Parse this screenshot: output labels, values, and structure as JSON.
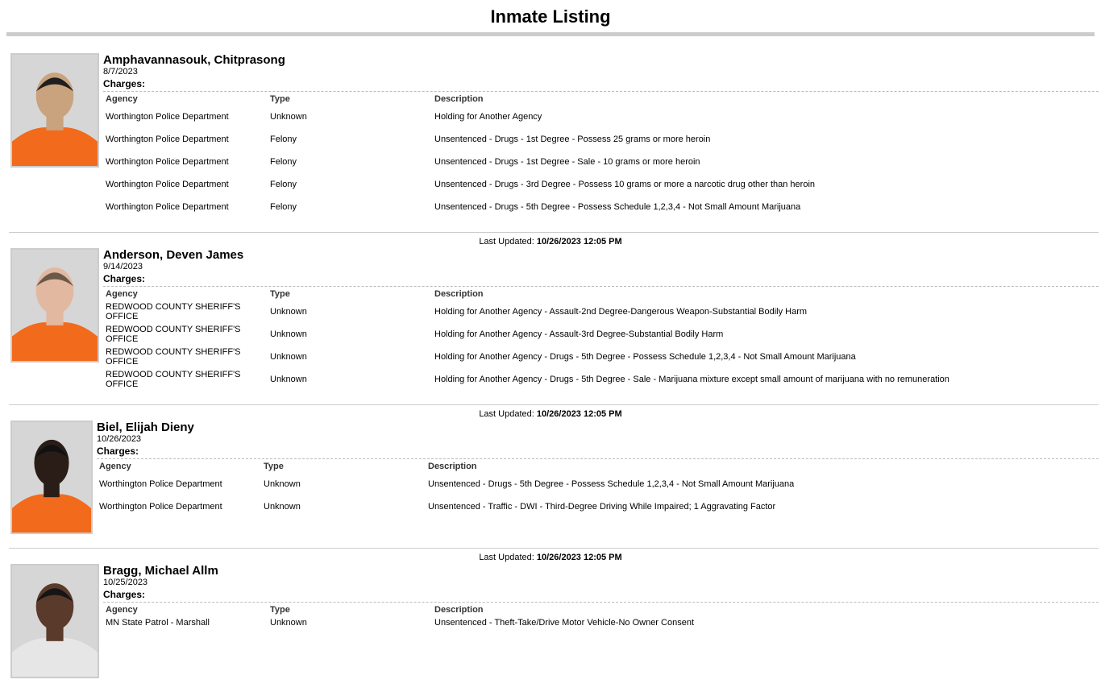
{
  "page": {
    "title": "Inmate Listing"
  },
  "labels": {
    "charges": "Charges:",
    "agency": "Agency",
    "type": "Type",
    "description": "Description",
    "last_updated": "Last Updated:"
  },
  "inmates": [
    {
      "name": "Amphavannasouk, Chitprasong",
      "date": "8/7/2023",
      "last_updated": "10/26/2023 12:05 PM",
      "charges": [
        {
          "agency": "Worthington Police Department",
          "type": "Unknown",
          "description": "Holding for Another Agency"
        },
        {
          "agency": "Worthington Police Department",
          "type": "Felony",
          "description": "Unsentenced - Drugs - 1st Degree - Possess 25 grams or more heroin"
        },
        {
          "agency": "Worthington Police Department",
          "type": "Felony",
          "description": "Unsentenced - Drugs - 1st Degree - Sale - 10 grams or more heroin"
        },
        {
          "agency": "Worthington Police Department",
          "type": "Felony",
          "description": "Unsentenced - Drugs - 3rd Degree - Possess 10 grams or more a narcotic drug other than heroin"
        },
        {
          "agency": "Worthington Police Department",
          "type": "Felony",
          "description": "Unsentenced - Drugs - 5th Degree - Possess Schedule 1,2,3,4 - Not Small Amount Marijuana"
        }
      ]
    },
    {
      "name": "Anderson, Deven James",
      "date": "9/14/2023",
      "last_updated": "10/26/2023 12:05 PM",
      "charges": [
        {
          "agency": "REDWOOD COUNTY SHERIFF'S OFFICE",
          "type": "Unknown",
          "description": "Holding for Another Agency - Assault-2nd Degree-Dangerous Weapon-Substantial Bodily Harm"
        },
        {
          "agency": "REDWOOD COUNTY SHERIFF'S OFFICE",
          "type": "Unknown",
          "description": "Holding for Another Agency - Assault-3rd Degree-Substantial Bodily Harm"
        },
        {
          "agency": "REDWOOD COUNTY SHERIFF'S OFFICE",
          "type": "Unknown",
          "description": "Holding for Another Agency - Drugs - 5th Degree - Possess Schedule 1,2,3,4 - Not Small Amount Marijuana"
        },
        {
          "agency": "REDWOOD COUNTY SHERIFF'S OFFICE",
          "type": "Unknown",
          "description": "Holding for Another Agency - Drugs - 5th Degree - Sale - Marijuana mixture except small amount of marijuana with no remuneration"
        }
      ]
    },
    {
      "name": "Biel, Elijah Dieny",
      "date": "10/26/2023",
      "last_updated": "10/26/2023 12:05 PM",
      "charges": [
        {
          "agency": "Worthington Police Department",
          "type": "Unknown",
          "description": "Unsentenced - Drugs - 5th Degree - Possess Schedule 1,2,3,4 - Not Small Amount Marijuana"
        },
        {
          "agency": "Worthington Police Department",
          "type": "Unknown",
          "description": "Unsentenced - Traffic - DWI - Third-Degree Driving While Impaired; 1 Aggravating Factor"
        }
      ]
    },
    {
      "name": "Bragg, Michael Allm",
      "date": "10/25/2023",
      "charges": [
        {
          "agency": "MN State Patrol - Marshall",
          "type": "Unknown",
          "description": "Unsentenced - Theft-Take/Drive Motor Vehicle-No Owner Consent"
        }
      ]
    }
  ],
  "photo_styles": [
    {
      "skin": "#c9a27e",
      "hair": "#1e1e1e",
      "shirt": "#f26a1b"
    },
    {
      "skin": "#e2b8a0",
      "hair": "#6b5848",
      "shirt": "#f26a1b"
    },
    {
      "skin": "#2a1d18",
      "hair": "#111111",
      "shirt": "#f26a1b"
    },
    {
      "skin": "#5a3a2a",
      "hair": "#151515",
      "shirt": "#e6e6e6"
    }
  ]
}
